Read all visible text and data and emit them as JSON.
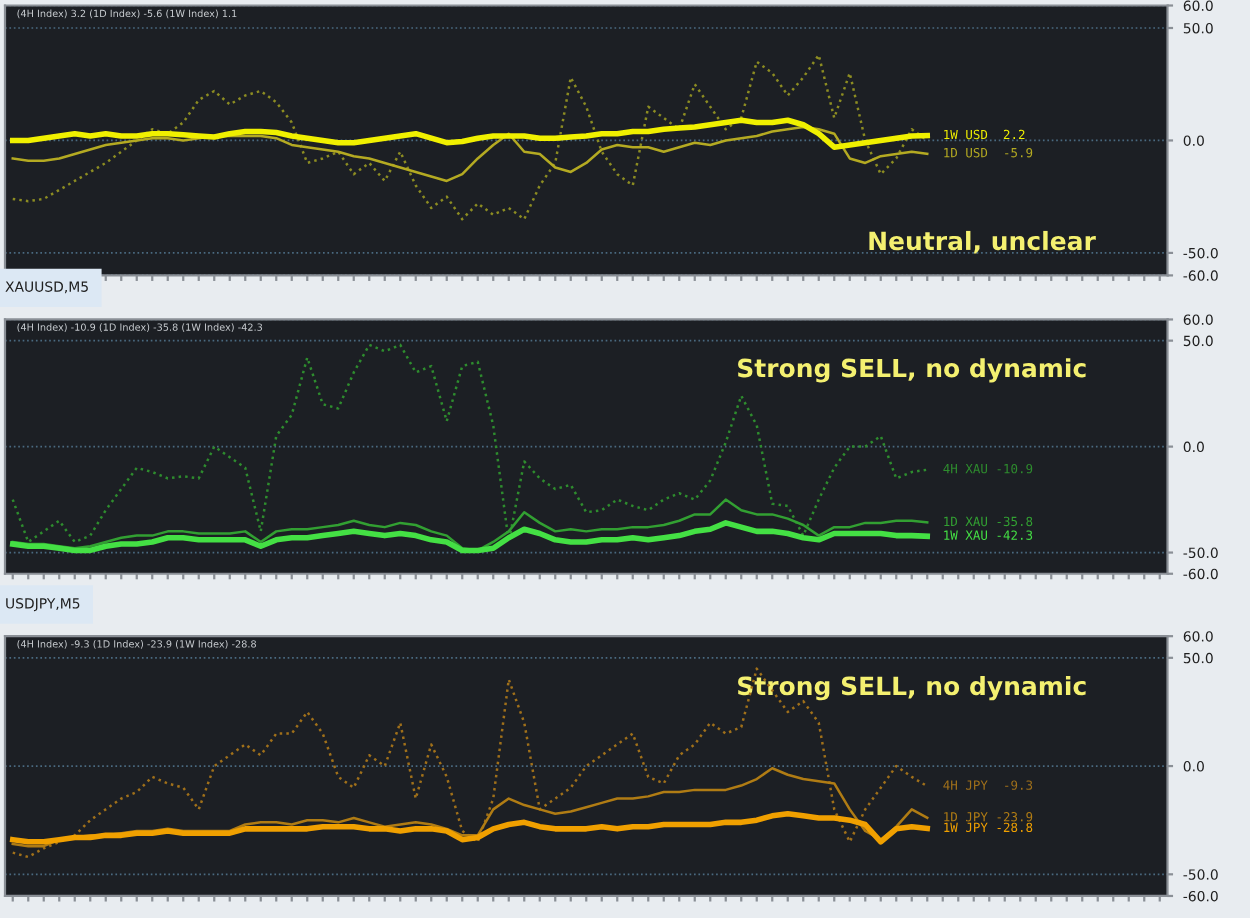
{
  "chart_data": [
    {
      "type": "line",
      "subtitle": "(4H Index) 3.2 (1D Index) -5.6 (1W Index) 1.1",
      "annotations": [
        "Neutral, unclear"
      ],
      "categories": [
        null,
        null,
        null,
        null,
        null,
        null,
        null,
        null,
        null,
        null,
        null,
        null,
        null,
        null,
        null,
        null,
        null,
        null,
        null,
        null,
        null,
        null,
        null,
        null,
        null,
        null,
        null,
        null,
        null,
        null,
        null,
        null,
        null,
        null,
        null,
        null,
        null,
        null,
        null,
        null,
        null,
        null,
        null,
        null,
        null,
        null,
        null,
        null,
        null,
        null,
        null,
        null,
        null,
        null,
        null,
        null,
        null,
        null,
        null,
        null,
        null,
        null,
        null,
        null,
        null,
        null,
        null,
        null,
        null,
        null,
        null,
        null,
        null,
        null,
        null
      ],
      "ylim": [
        -60,
        60
      ],
      "yticks": [
        {
          "value": -60,
          "label": "-60.0"
        },
        {
          "value": -50,
          "label": "-50.0"
        },
        {
          "value": 0,
          "label": "0.0"
        },
        {
          "value": 50,
          "label": "50.0"
        },
        {
          "value": 60,
          "label": "60.0"
        }
      ],
      "grid": "y",
      "tick_labels": "y",
      "series": [
        {
          "color": "#8c8c22",
          "line_style": "dotted",
          "values": [
            -26,
            -27,
            -26,
            -22,
            -18,
            -14,
            -10,
            -5,
            0,
            5,
            3,
            8,
            18,
            22,
            16,
            20,
            22,
            17,
            8,
            -10,
            -8,
            -5,
            -15,
            -10,
            -18,
            -5,
            -20,
            -30,
            -25,
            -35,
            -28,
            -33,
            -30,
            -35,
            -20,
            -10,
            28,
            15,
            -5,
            -15,
            -20,
            15,
            10,
            5,
            25,
            15,
            5,
            10,
            35,
            30,
            20,
            28,
            38,
            10,
            30,
            0,
            -15,
            -8,
            5,
            0,
            null,
            null,
            null,
            null,
            null,
            null,
            null,
            null,
            null,
            null,
            null,
            null,
            null,
            null,
            null
          ]
        },
        {
          "name": "1D USD  -5.9",
          "color": "#b4aa22",
          "line_style": "solid",
          "values": [
            -8,
            -9,
            -9,
            -8,
            -6,
            -4,
            -2,
            -1,
            0,
            1,
            1,
            0,
            1,
            2,
            2,
            2,
            2,
            1,
            -2,
            -3,
            -4,
            -5,
            -7,
            -8,
            -10,
            -12,
            -14,
            -16,
            -18,
            -15,
            -8,
            -2,
            3,
            -5,
            -6,
            -12,
            -14,
            -10,
            -4,
            -2,
            -3,
            -3,
            -5,
            -3,
            -1,
            -2,
            0,
            1,
            2,
            4,
            5,
            6,
            5,
            3,
            -8,
            -10,
            -7,
            -6,
            -5,
            -5.9,
            null,
            null,
            null,
            null,
            null,
            null,
            null,
            null,
            null,
            null,
            null,
            null,
            null,
            null,
            null
          ]
        },
        {
          "name": "1W USD  2.2",
          "color": "#f0f000",
          "line_style": "solid",
          "values": [
            0,
            0,
            1,
            2,
            3,
            2,
            3,
            2,
            2,
            3,
            3,
            2.5,
            2,
            1.5,
            3,
            4,
            4,
            3.5,
            2,
            1,
            0,
            -1,
            -1,
            0,
            1,
            2,
            3,
            1,
            -1,
            -0.5,
            1,
            2,
            2,
            2,
            1,
            1,
            1.5,
            2,
            3,
            3,
            4,
            4,
            5,
            5.5,
            6,
            7,
            8,
            9,
            8,
            8,
            9,
            7,
            3,
            -3,
            -2,
            -1,
            0,
            1,
            2,
            2.2,
            null,
            null,
            null,
            null,
            null,
            null,
            null,
            null,
            null,
            null,
            null,
            null,
            null,
            null,
            null
          ]
        }
      ]
    },
    {
      "type": "line",
      "title": "XAUUSD,M5",
      "subtitle": "(4H Index) -10.9 (1D Index) -35.8 (1W Index) -42.3",
      "annotations": [
        "Strong SELL, no dynamic"
      ],
      "categories": [
        null,
        null,
        null,
        null,
        null,
        null,
        null,
        null,
        null,
        null,
        null,
        null,
        null,
        null,
        null,
        null,
        null,
        null,
        null,
        null,
        null,
        null,
        null,
        null,
        null,
        null,
        null,
        null,
        null,
        null,
        null,
        null,
        null,
        null,
        null,
        null,
        null,
        null,
        null,
        null,
        null,
        null,
        null,
        null,
        null,
        null,
        null,
        null,
        null,
        null,
        null,
        null,
        null,
        null,
        null,
        null,
        null,
        null,
        null,
        null,
        null,
        null,
        null,
        null,
        null,
        null,
        null,
        null,
        null,
        null,
        null,
        null,
        null,
        null,
        null
      ],
      "ylim": [
        -60,
        60
      ],
      "yticks": [
        {
          "value": -60,
          "label": "-60.0"
        },
        {
          "value": -50,
          "label": "-50.0"
        },
        {
          "value": 0,
          "label": "0.0"
        },
        {
          "value": 50,
          "label": "50.0"
        },
        {
          "value": 60,
          "label": "60.0"
        }
      ],
      "grid": "y",
      "tick_labels": "y",
      "series": [
        {
          "name": "4H XAU -10.9",
          "color": "#2e8c2e",
          "line_style": "dotted",
          "values": [
            -25,
            -45,
            -40,
            -35,
            -45,
            -42,
            -30,
            -20,
            -10,
            -12,
            -15,
            -14,
            -15,
            0,
            -5,
            -10,
            -40,
            5,
            15,
            42,
            20,
            18,
            35,
            48,
            45,
            48,
            35,
            38,
            12,
            38,
            40,
            10,
            -45,
            -7,
            -15,
            -20,
            -18,
            -31,
            -30,
            -25,
            -28,
            -30,
            -25,
            -22,
            -25,
            -16,
            2,
            24,
            10,
            -27,
            -28,
            -42,
            -25,
            -10,
            0,
            0,
            5,
            -15,
            -12,
            -10.9,
            null,
            null,
            null,
            null,
            null,
            null,
            null,
            null,
            null,
            null,
            null,
            null,
            null,
            null,
            null
          ]
        },
        {
          "name": "1D XAU -35.8",
          "color": "#32a032",
          "line_style": "solid",
          "values": [
            -45,
            -46,
            -46,
            -47,
            -48,
            -47,
            -45,
            -43,
            -42,
            -42,
            -40,
            -40,
            -41,
            -41,
            -41,
            -40,
            -45,
            -40,
            -39,
            -39,
            -38,
            -37,
            -35,
            -37,
            -38,
            -36,
            -37,
            -40,
            -42,
            -48,
            -49,
            -45,
            -40,
            -31,
            -36,
            -40,
            -39,
            -40,
            -39,
            -39,
            -38,
            -38,
            -37,
            -35,
            -32,
            -32,
            -25,
            -30,
            -32,
            -32,
            -34,
            -37,
            -42,
            -38,
            -38,
            -36,
            -36,
            -35,
            -35,
            -35.8,
            null,
            null,
            null,
            null,
            null,
            null,
            null,
            null,
            null,
            null,
            null,
            null,
            null,
            null,
            null
          ]
        },
        {
          "name": "1W XAU -42.3",
          "color": "#44e044",
          "line_style": "solid",
          "values": [
            -46,
            -47,
            -47,
            -48,
            -49,
            -49,
            -47,
            -46,
            -46,
            -45,
            -43,
            -43,
            -44,
            -44,
            -44,
            -44,
            -47,
            -44,
            -43,
            -43,
            -42,
            -41,
            -40,
            -41,
            -42,
            -41,
            -42,
            -44,
            -45,
            -49,
            -49,
            -48,
            -43,
            -39,
            -41,
            -44,
            -45,
            -45,
            -44,
            -44,
            -43,
            -44,
            -43,
            -42,
            -40,
            -39,
            -36,
            -38,
            -40,
            -40,
            -41,
            -43,
            -44,
            -41,
            -41,
            -41,
            -41,
            -42,
            -42,
            -42.3,
            null,
            null,
            null,
            null,
            null,
            null,
            null,
            null,
            null,
            null,
            null,
            null,
            null,
            null,
            null
          ]
        }
      ]
    },
    {
      "type": "line",
      "title": "USDJPY,M5",
      "subtitle": "(4H Index) -9.3 (1D Index) -23.9 (1W Index) -28.8",
      "annotations": [
        "Strong SELL, no dynamic"
      ],
      "categories": [
        null,
        null,
        null,
        null,
        null,
        null,
        null,
        null,
        null,
        null,
        null,
        null,
        null,
        null,
        null,
        null,
        null,
        null,
        null,
        null,
        null,
        null,
        null,
        null,
        null,
        null,
        null,
        null,
        null,
        null,
        null,
        null,
        null,
        null,
        null,
        null,
        null,
        null,
        null,
        null,
        null,
        null,
        null,
        null,
        null,
        null,
        null,
        null,
        null,
        null,
        null,
        null,
        null,
        null,
        null,
        null,
        null,
        null,
        null,
        null,
        null,
        null,
        null,
        null,
        null,
        null,
        null,
        null,
        null,
        null,
        null,
        null,
        null,
        null,
        null
      ],
      "ylim": [
        -60,
        60
      ],
      "yticks": [
        {
          "value": -60,
          "label": "-60.0"
        },
        {
          "value": -50,
          "label": "-50.0"
        },
        {
          "value": 0,
          "label": "0.0"
        },
        {
          "value": 50,
          "label": "50.0"
        },
        {
          "value": 60,
          "label": "60.0"
        }
      ],
      "grid": "y",
      "tick_labels": "y",
      "series": [
        {
          "name": "4H JPY  -9.3",
          "color": "#a0701a",
          "line_style": "dotted",
          "values": [
            -40,
            -42,
            -38,
            -35,
            -32,
            -25,
            -20,
            -15,
            -12,
            -5,
            -8,
            -10,
            -20,
            0,
            5,
            10,
            5,
            15,
            15,
            25,
            15,
            -5,
            -10,
            5,
            0,
            20,
            -15,
            10,
            -5,
            -30,
            -35,
            -15,
            40,
            20,
            -20,
            -15,
            -10,
            0,
            5,
            10,
            15,
            -5,
            -8,
            5,
            10,
            20,
            15,
            18,
            45,
            35,
            25,
            30,
            20,
            -20,
            -35,
            -20,
            -10,
            0,
            -5,
            -9.3,
            null,
            null,
            null,
            null,
            null,
            null,
            null,
            null,
            null,
            null,
            null,
            null,
            null,
            null,
            null
          ]
        },
        {
          "name": "1D JPY -23.9",
          "color": "#b07c14",
          "line_style": "solid",
          "values": [
            -36,
            -37,
            -37,
            -34,
            -33,
            -32,
            -32,
            -31,
            -30,
            -30,
            -29,
            -30,
            -30,
            -30,
            -30,
            -27,
            -26,
            -26,
            -27,
            -25,
            -25,
            -26,
            -24,
            -26,
            -28,
            -27,
            -26,
            -27,
            -29,
            -32,
            -32,
            -20,
            -15,
            -18,
            -20,
            -22,
            -21,
            -19,
            -17,
            -15,
            -15,
            -14,
            -12,
            -12,
            -11,
            -11,
            -11,
            -9,
            -6,
            -1,
            -4,
            -6,
            -7,
            -8,
            -20,
            -30,
            -34,
            -28,
            -20,
            -23.9,
            null,
            null,
            null,
            null,
            null,
            null,
            null,
            null,
            null,
            null,
            null,
            null,
            null,
            null,
            null
          ]
        },
        {
          "name": "1W JPY -28.8",
          "color": "#f0a000",
          "line_style": "solid",
          "values": [
            -34,
            -35,
            -35,
            -34,
            -33,
            -33,
            -32,
            -32,
            -31,
            -31,
            -30,
            -31,
            -31,
            -31,
            -31,
            -29,
            -29,
            -29,
            -29,
            -29,
            -28,
            -28,
            -28,
            -29,
            -29,
            -30,
            -29,
            -29,
            -30,
            -34,
            -33,
            -29,
            -27,
            -26,
            -28,
            -29,
            -29,
            -29,
            -28,
            -29,
            -28,
            -28,
            -27,
            -27,
            -27,
            -27,
            -26,
            -26,
            -25,
            -23,
            -22,
            -23,
            -24,
            -24,
            -25,
            -27,
            -35,
            -29,
            -28,
            -28.8,
            null,
            null,
            null,
            null,
            null,
            null,
            null,
            null,
            null,
            null,
            null,
            null,
            null,
            null,
            null
          ]
        }
      ]
    }
  ]
}
